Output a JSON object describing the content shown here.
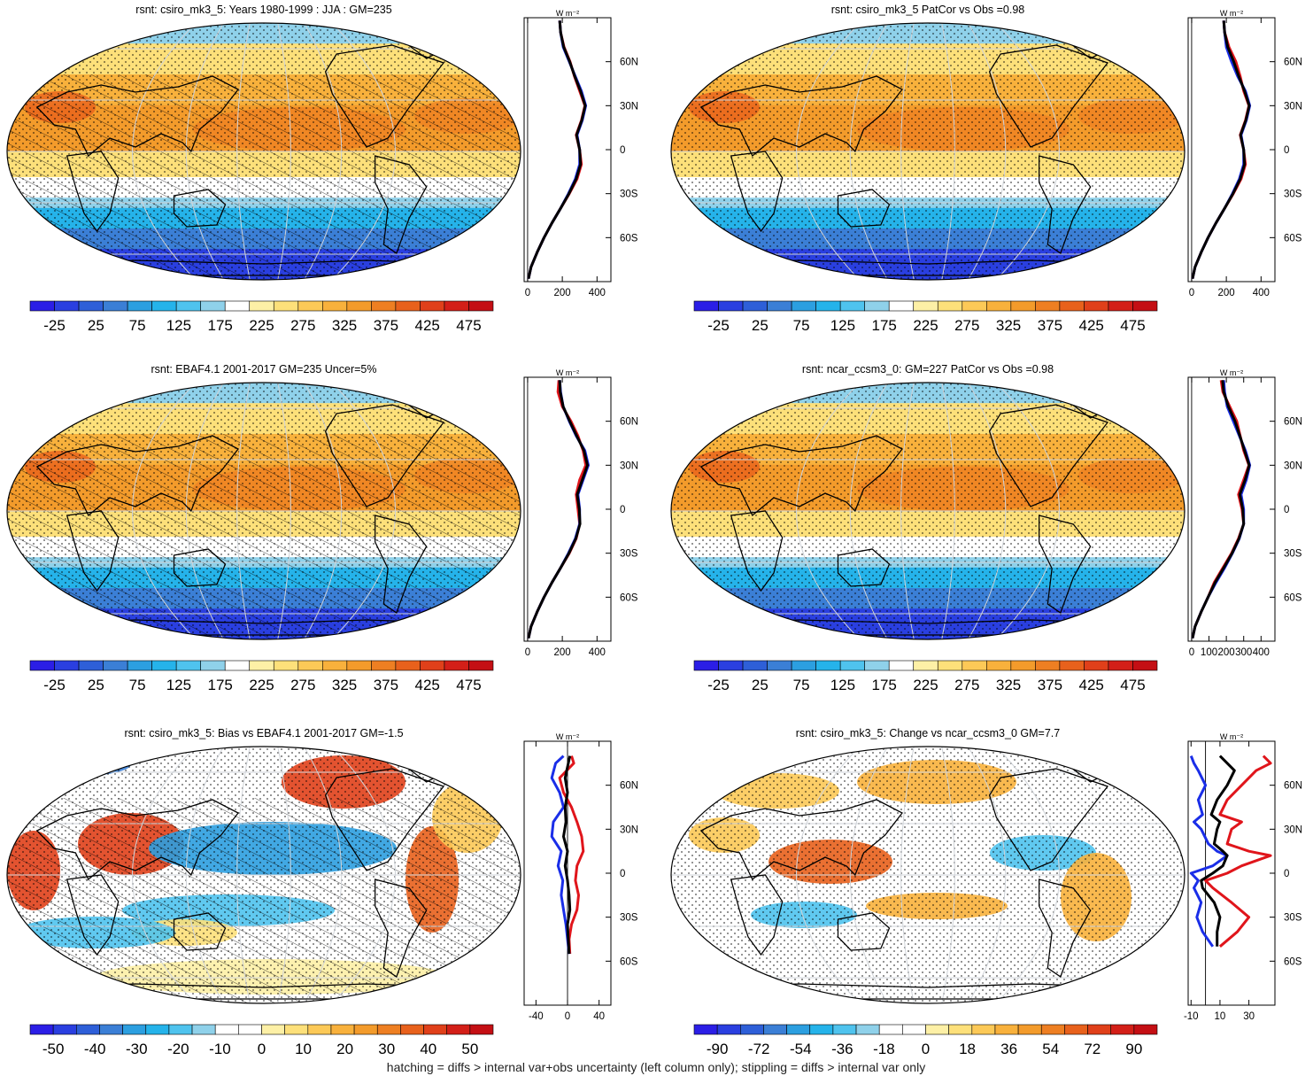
{
  "figure": {
    "footer": "hatching = diffs > internal var+obs uncertainty (left column only); stippling = diffs > internal var only"
  },
  "colors": {
    "abs_scale": [
      "#2b1ee6",
      "#2a3fe0",
      "#2e5fd8",
      "#3b7fd6",
      "#2c9fe0",
      "#25b3ea",
      "#4fc3ee",
      "#8fd1ea",
      "#ffffff",
      "#fdf0a6",
      "#fde07a",
      "#fcc957",
      "#f8b13c",
      "#f39b2b",
      "#ee7f22",
      "#e8611c",
      "#e0401a",
      "#d31f18",
      "#c40f14"
    ],
    "diff_scale": [
      "#2b1ee6",
      "#2a3fe0",
      "#2e5fd8",
      "#3b7fd6",
      "#2c9fe0",
      "#25b3ea",
      "#4fc3ee",
      "#8fd1ea",
      "#ffffff",
      "#ffffff",
      "#fdf0a6",
      "#fde07a",
      "#fcc957",
      "#f8b13c",
      "#f39b2b",
      "#ee7f22",
      "#e8611c",
      "#e0401a",
      "#d31f18",
      "#c40f14"
    ],
    "profile_series": [
      "#e0151b",
      "#1a2ee8",
      "#000000"
    ]
  },
  "chart_data": [
    {
      "type": "heatmap",
      "title": "rsnt: csiro_mk3_5: Years 1980-1999 : JJA : GM=235",
      "colorbar_ticks": [
        "-25",
        "25",
        "75",
        "125",
        "175",
        "225",
        "275",
        "325",
        "375",
        "425",
        "475"
      ],
      "overlay": "hatching+stippling",
      "zonal_profile": {
        "type": "line",
        "unit_label": "W m⁻²",
        "x_ticks": [
          "0",
          "200",
          "400"
        ],
        "y_ticks": [
          "60N",
          "30N",
          "0",
          "30S",
          "60S"
        ],
        "xlim": [
          -20,
          480
        ],
        "ylim": [
          -90,
          90
        ],
        "y": [
          -88,
          -80,
          -70,
          -60,
          -50,
          -40,
          -30,
          -20,
          -10,
          0,
          10,
          20,
          30,
          40,
          50,
          60,
          70,
          80,
          88
        ],
        "series": [
          {
            "values": [
              5,
              20,
              55,
              95,
              140,
              190,
              240,
              285,
              310,
              300,
              280,
              310,
              330,
              300,
              270,
              245,
              210,
              190,
              185
            ]
          },
          {
            "values": [
              5,
              20,
              55,
              95,
              140,
              190,
              235,
              275,
              300,
              300,
              285,
              315,
              335,
              310,
              275,
              240,
              205,
              190,
              185
            ]
          },
          {
            "values": [
              5,
              20,
              55,
              95,
              140,
              190,
              238,
              280,
              305,
              300,
              282,
              312,
              332,
              305,
              272,
              243,
              208,
              190,
              185
            ]
          }
        ]
      }
    },
    {
      "type": "heatmap",
      "title": "rsnt: csiro_mk3_5 PatCor vs Obs =0.98",
      "colorbar_ticks": [
        "-25",
        "25",
        "75",
        "125",
        "175",
        "225",
        "275",
        "325",
        "375",
        "425",
        "475"
      ],
      "overlay": "stippling",
      "zonal_profile": {
        "type": "line",
        "unit_label": "W m⁻²",
        "x_ticks": [
          "0",
          "200",
          "400"
        ],
        "y_ticks": [
          "60N",
          "30N",
          "0",
          "30S",
          "60S"
        ],
        "xlim": [
          -20,
          480
        ],
        "ylim": [
          -90,
          90
        ],
        "y": [
          -88,
          -80,
          -70,
          -60,
          -50,
          -40,
          -30,
          -20,
          -10,
          0,
          10,
          20,
          30,
          40,
          50,
          60,
          70,
          80,
          88
        ],
        "series": [
          {
            "values": [
              5,
              20,
              55,
              95,
              140,
              190,
              240,
              285,
              310,
              300,
              280,
              310,
              330,
              300,
              280,
              255,
              215,
              190,
              185
            ]
          },
          {
            "values": [
              5,
              20,
              55,
              95,
              140,
              190,
              235,
              275,
              300,
              300,
              285,
              315,
              335,
              310,
              265,
              230,
              200,
              190,
              185
            ]
          },
          {
            "values": [
              5,
              20,
              55,
              95,
              140,
              190,
              238,
              280,
              305,
              300,
              282,
              312,
              332,
              305,
              272,
              243,
              208,
              190,
              185
            ]
          }
        ]
      }
    },
    {
      "type": "heatmap",
      "title": "rsnt: EBAF4.1 2001-2017 GM=235 Uncer=5%",
      "colorbar_ticks": [
        "-25",
        "25",
        "75",
        "125",
        "175",
        "225",
        "275",
        "325",
        "375",
        "425",
        "475"
      ],
      "overlay": "hatching+stippling",
      "zonal_profile": {
        "type": "line",
        "unit_label": "W m⁻²",
        "x_ticks": [
          "0",
          "200",
          "400"
        ],
        "y_ticks": [
          "60N",
          "30N",
          "0",
          "30S",
          "60S"
        ],
        "xlim": [
          -20,
          480
        ],
        "ylim": [
          -90,
          90
        ],
        "y": [
          -88,
          -80,
          -70,
          -60,
          -50,
          -40,
          -30,
          -20,
          -10,
          0,
          10,
          20,
          30,
          40,
          50,
          60,
          70,
          80,
          88
        ],
        "series": [
          {
            "values": [
              5,
              20,
              55,
              95,
              140,
              190,
              240,
              280,
              300,
              290,
              280,
              300,
              335,
              320,
              290,
              250,
              200,
              175,
              180
            ]
          },
          {
            "values": [
              5,
              20,
              55,
              95,
              140,
              190,
              235,
              275,
              300,
              300,
              290,
              320,
              350,
              330,
              280,
              240,
              205,
              190,
              185
            ]
          },
          {
            "values": [
              5,
              20,
              55,
              95,
              140,
              190,
              238,
              278,
              302,
              298,
              286,
              315,
              345,
              325,
              283,
              243,
              205,
              188,
              185
            ]
          }
        ]
      }
    },
    {
      "type": "heatmap",
      "title": "rsnt: ncar_ccsm3_0: GM=227 PatCor vs Obs =0.98",
      "colorbar_ticks": [
        "-25",
        "25",
        "75",
        "125",
        "175",
        "225",
        "275",
        "325",
        "375",
        "425",
        "475"
      ],
      "overlay": "stippling",
      "zonal_profile": {
        "type": "line",
        "unit_label": "W m⁻²",
        "x_ticks": [
          "0",
          "100",
          "200",
          "300",
          "400"
        ],
        "y_ticks": [
          "60N",
          "30N",
          "0",
          "30S",
          "60S"
        ],
        "xlim": [
          -20,
          480
        ],
        "ylim": [
          -90,
          90
        ],
        "y": [
          -88,
          -80,
          -70,
          -60,
          -50,
          -40,
          -30,
          -20,
          -10,
          0,
          10,
          20,
          30,
          40,
          50,
          60,
          70,
          80,
          88
        ],
        "series": [
          {
            "values": [
              5,
              20,
              55,
              95,
              130,
              180,
              230,
              270,
              300,
              290,
              270,
              300,
              330,
              300,
              280,
              260,
              220,
              180,
              170
            ]
          },
          {
            "values": [
              5,
              20,
              55,
              95,
              140,
              190,
              235,
              275,
              300,
              300,
              285,
              315,
              335,
              310,
              275,
              240,
              205,
              190,
              185
            ]
          },
          {
            "values": [
              5,
              20,
              55,
              95,
              135,
              185,
              233,
              273,
              300,
              295,
              278,
              308,
              332,
              305,
              278,
              250,
              212,
              185,
              178
            ]
          }
        ]
      }
    },
    {
      "type": "heatmap",
      "title": "rsnt: csiro_mk3_5: Bias vs EBAF4.1 2001-2017 GM=-1.5",
      "colorbar_ticks": [
        "-50",
        "-40",
        "-30",
        "-20",
        "-10",
        "0",
        "10",
        "20",
        "30",
        "40",
        "50"
      ],
      "overlay": "hatching+stippling",
      "zonal_profile": {
        "type": "line",
        "unit_label": "W m⁻²",
        "x_ticks": [
          "-40",
          "0",
          "40"
        ],
        "y_ticks": [
          "60N",
          "30N",
          "0",
          "30S",
          "60S"
        ],
        "xlim": [
          -55,
          55
        ],
        "ylim": [
          -90,
          90
        ],
        "y": [
          -55,
          -45,
          -35,
          -25,
          -15,
          -5,
          5,
          15,
          25,
          35,
          45,
          55,
          65,
          75,
          80
        ],
        "series": [
          {
            "values": [
              3,
              2,
              5,
              12,
              14,
              10,
              12,
              20,
              18,
              12,
              5,
              -5,
              -10,
              8,
              5
            ]
          },
          {
            "values": [
              2,
              0,
              -2,
              -5,
              -8,
              -6,
              -12,
              -8,
              -20,
              -18,
              -5,
              -10,
              -20,
              -15,
              -5
            ]
          },
          {
            "values": [
              2,
              1,
              0,
              3,
              2,
              0,
              -3,
              0,
              -5,
              -2,
              -3,
              0,
              -3,
              1,
              3
            ]
          }
        ]
      }
    },
    {
      "type": "heatmap",
      "title": "rsnt: csiro_mk3_5: Change vs ncar_ccsm3_0 GM=7.7",
      "colorbar_ticks": [
        "-90",
        "-72",
        "-54",
        "-36",
        "-18",
        "0",
        "18",
        "36",
        "54",
        "72",
        "90"
      ],
      "overlay": "stippling",
      "zonal_profile": {
        "type": "line",
        "unit_label": "W m⁻²",
        "x_ticks": [
          "-10",
          "10",
          "30"
        ],
        "y_ticks": [
          "60N",
          "30N",
          "0",
          "30S",
          "60S"
        ],
        "xlim": [
          -12,
          48
        ],
        "ylim": [
          -90,
          90
        ],
        "y": [
          -50,
          -40,
          -30,
          -20,
          -10,
          -5,
          0,
          5,
          12,
          15,
          20,
          30,
          35,
          40,
          50,
          60,
          70,
          75,
          80
        ],
        "series": [
          {
            "values": [
              10,
              22,
              30,
              18,
              5,
              0,
              15,
              25,
              45,
              30,
              15,
              18,
              25,
              10,
              15,
              25,
              35,
              45,
              40
            ]
          },
          {
            "values": [
              5,
              -2,
              -6,
              -3,
              -8,
              -5,
              -10,
              5,
              15,
              8,
              2,
              -3,
              -8,
              -2,
              -5,
              0,
              -5,
              -8,
              -10
            ]
          },
          {
            "values": [
              8,
              8,
              10,
              6,
              -2,
              -3,
              5,
              12,
              15,
              12,
              6,
              8,
              10,
              4,
              8,
              15,
              20,
              15,
              10
            ]
          }
        ]
      }
    }
  ]
}
